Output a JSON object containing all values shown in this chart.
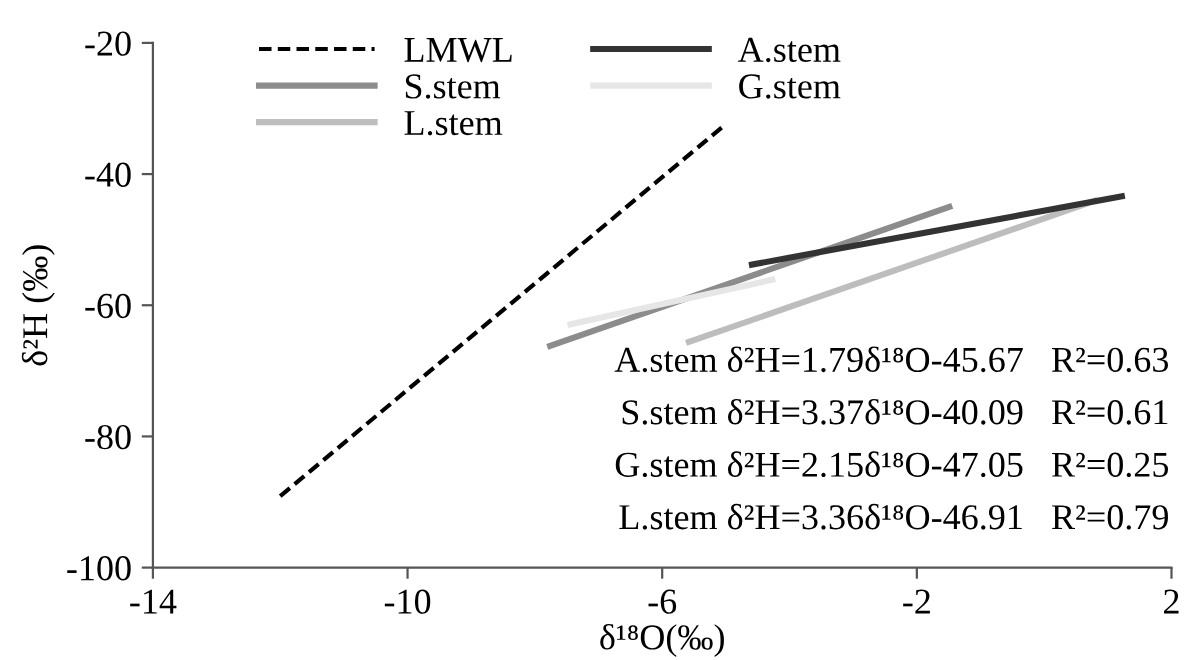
{
  "chart_data": {
    "type": "line",
    "xlabel": "δ¹⁸O(‰)",
    "ylabel": "δ²H (‰)",
    "series": [
      {
        "name": "LMWL",
        "color": "#000000",
        "line_style": "dashed",
        "x": [
          -12.0,
          -5.04
        ],
        "values": [
          -89.1,
          -32.7
        ]
      },
      {
        "name": "S.stem",
        "color": "#8c8c8c",
        "x": [
          -7.76,
          -1.49
        ],
        "values": [
          -66.2,
          -45.0
        ]
      },
      {
        "name": "L.stem",
        "color": "#bdbdbd",
        "x": [
          -5.58,
          0.79
        ],
        "values": [
          -65.6,
          -44.1
        ]
      },
      {
        "name": "A.stem",
        "color": "#333333",
        "x": [
          -4.59,
          1.22
        ],
        "values": [
          -53.8,
          -43.4
        ]
      },
      {
        "name": "G.stem",
        "color": "#e6e6e6",
        "x": [
          -7.44,
          -4.27
        ],
        "values": [
          -62.9,
          -56.1
        ]
      }
    ],
    "annotations": [
      "A.stem δ²H=1.79δ¹⁸O-45.67   R²=0.63",
      "S.stem δ²H=3.37δ¹⁸O-40.09   R²=0.61",
      "G.stem δ²H=2.15δ¹⁸O-47.05   R²=0.25",
      "L.stem δ²H=3.36δ¹⁸O-46.91   R²=0.79"
    ],
    "xlim": [
      -14,
      2
    ],
    "xticks": [
      -14,
      -10,
      -6,
      -2,
      2
    ],
    "ylim": [
      -100,
      -20
    ],
    "yticks": [
      -100,
      -80,
      -60,
      -40,
      -20
    ],
    "grid": false,
    "legend": "top left"
  }
}
